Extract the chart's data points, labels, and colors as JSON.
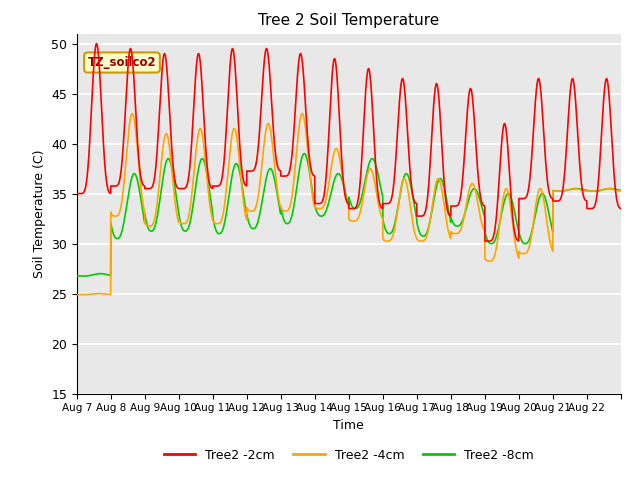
{
  "title": "Tree 2 Soil Temperature",
  "xlabel": "Time",
  "ylabel": "Soil Temperature (C)",
  "ylim": [
    15,
    51
  ],
  "yticks": [
    15,
    20,
    25,
    30,
    35,
    40,
    45,
    50
  ],
  "annotation_text": "TZ_soilco2",
  "legend_labels": [
    "Tree2 -2cm",
    "Tree2 -4cm",
    "Tree2 -8cm"
  ],
  "legend_colors": [
    "#ff0000",
    "#ffa500",
    "#00cc00"
  ],
  "line_width": 1.2,
  "plot_bg_color": "#e8e8e8",
  "fig_bg_color": "#ffffff",
  "grid_color": "#ffffff",
  "xtick_dates": [
    "Aug 7",
    "Aug 8",
    "Aug 9",
    "Aug 10",
    "Aug 11",
    "Aug 12",
    "Aug 13",
    "Aug 14",
    "Aug 15",
    "Aug 16",
    "Aug 17",
    "Aug 18",
    "Aug 19",
    "Aug 20",
    "Aug 21",
    "Aug 22"
  ],
  "num_days": 16
}
